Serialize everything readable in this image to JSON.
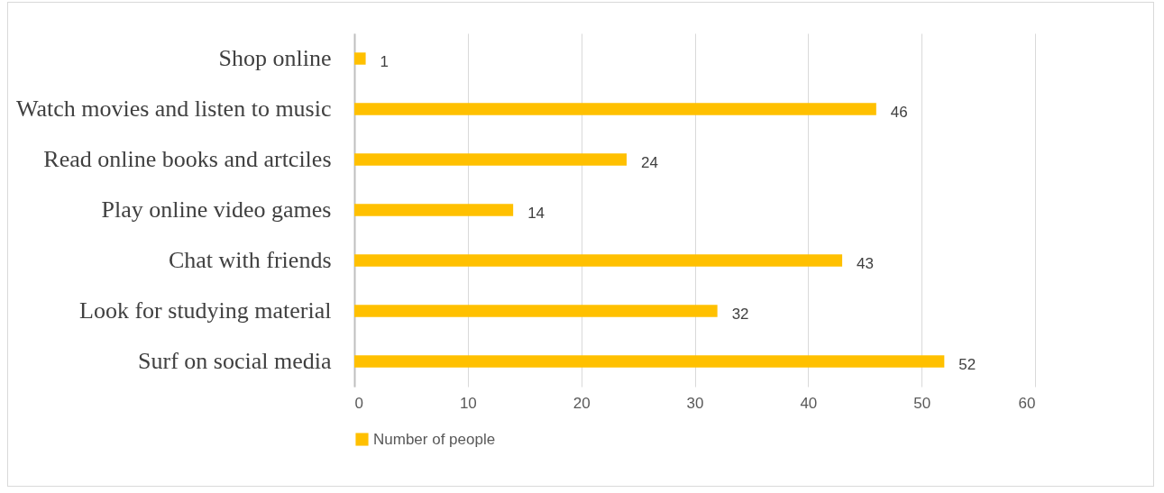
{
  "chart_data": {
    "type": "bar",
    "orientation": "horizontal",
    "categories": [
      "Shop online",
      "Watch movies and listen to music",
      "Read online books and artciles",
      "Play online video games",
      "Chat with friends",
      "Look for studying material",
      "Surf on social media"
    ],
    "series": [
      {
        "name": "Number of people",
        "color": "#ffc000",
        "values": [
          1,
          46,
          24,
          14,
          43,
          32,
          52
        ]
      }
    ],
    "xlim": [
      0,
      60
    ],
    "xticks": [
      0,
      10,
      20,
      30,
      40,
      50,
      60
    ],
    "grid": "x",
    "legend": "bottom",
    "data_labels": true
  }
}
